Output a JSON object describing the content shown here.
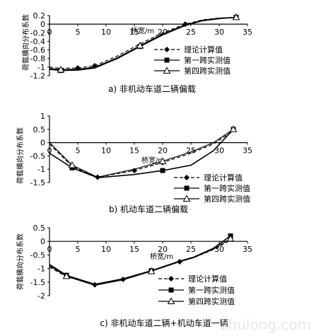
{
  "charts": [
    {
      "caption": "a) 非机动车道二辆偏载",
      "chart_data": {
        "type": "line",
        "title": "",
        "xlabel": "桥宽/m",
        "ylabel": "荷载横向分布系数",
        "xlim": [
          0,
          35
        ],
        "ylim": [
          -1.2,
          0.2
        ],
        "xticks": [
          0,
          5,
          10,
          15,
          20,
          25,
          30,
          35
        ],
        "yticks": [
          0.2,
          0,
          -0.2,
          -0.4,
          -0.6,
          -0.8,
          -1,
          -1.2
        ],
        "grid": false,
        "legend_position": "bottom-right",
        "series": [
          {
            "name": "理论计算值",
            "marker": "diamond",
            "dash": "5,3",
            "color": "#000000",
            "x": [
              0,
              2,
              5,
              8,
              12,
              16,
              20,
              24,
              27,
              30,
              33
            ],
            "y": [
              -1.0,
              -1.03,
              -1.02,
              -0.97,
              -0.74,
              -0.46,
              -0.2,
              0.0,
              0.1,
              0.14,
              0.15
            ]
          },
          {
            "name": "第一跨实测值",
            "marker": "square",
            "dash": "",
            "color": "#000000",
            "x": [
              0,
              2,
              5,
              8,
              12,
              16,
              20,
              24,
              27,
              30,
              33
            ],
            "y": [
              -1.05,
              -1.08,
              -1.07,
              -1.02,
              -0.8,
              -0.52,
              -0.25,
              -0.03,
              0.08,
              0.13,
              0.16
            ]
          },
          {
            "name": "第四跨实测值",
            "marker": "triangle",
            "dash": "",
            "color": "#000000",
            "x": [
              0,
              2,
              5,
              8,
              12,
              16,
              20,
              24,
              27,
              30,
              33
            ],
            "y": [
              -1.03,
              -1.06,
              -1.05,
              -1.0,
              -0.78,
              -0.5,
              -0.23,
              -0.02,
              0.09,
              0.14,
              0.16
            ]
          }
        ]
      }
    },
    {
      "caption": "b) 机动车道二辆偏载",
      "chart_data": {
        "type": "line",
        "title": "",
        "xlabel": "桥宽/m",
        "ylabel": "荷载横向分布系数",
        "xlim": [
          0,
          35
        ],
        "ylim": [
          -1.5,
          1
        ],
        "xticks": [
          0,
          5,
          10,
          15,
          20,
          25,
          30,
          35
        ],
        "yticks": [
          1,
          0.5,
          0,
          -0.5,
          -1,
          -1.5
        ],
        "grid": false,
        "legend_position": "bottom-right",
        "series": [
          {
            "name": "理论计算值",
            "marker": "diamond",
            "dash": "5,3",
            "color": "#000000",
            "x": [
              0,
              4,
              8.5,
              15,
              20,
              25,
              29,
              32.5
            ],
            "y": [
              -0.05,
              -0.9,
              -1.3,
              -1.05,
              -0.75,
              -0.4,
              -0.05,
              0.45
            ]
          },
          {
            "name": "第一跨实测值",
            "marker": "square",
            "dash": "",
            "color": "#000000",
            "x": [
              0,
              4,
              8.5,
              15,
              20,
              25,
              29,
              32.5
            ],
            "y": [
              -0.4,
              -0.95,
              -1.32,
              -1.2,
              -1.05,
              -0.85,
              -0.3,
              0.5
            ]
          },
          {
            "name": "第四跨实测值",
            "marker": "triangle",
            "dash": "",
            "color": "#000000",
            "x": [
              0,
              4,
              8.5,
              15,
              20,
              25,
              29,
              32.5
            ],
            "y": [
              0.0,
              -0.85,
              -1.3,
              -1.0,
              -0.7,
              -0.35,
              0.0,
              0.5
            ]
          }
        ]
      }
    },
    {
      "caption": "c) 非机动车道二辆+机动车道一辆",
      "chart_data": {
        "type": "line",
        "title": "",
        "xlabel": "桥宽/m",
        "ylabel": "荷载横向分布系数",
        "xlim": [
          0,
          35
        ],
        "ylim": [
          -2,
          0.5
        ],
        "xticks": [
          0,
          5,
          10,
          15,
          20,
          25,
          30,
          35
        ],
        "yticks": [
          0.5,
          0,
          -0.5,
          -1,
          -1.5,
          -2
        ],
        "grid": false,
        "legend_position": "bottom-right",
        "series": [
          {
            "name": "理论计算值",
            "marker": "diamond",
            "dash": "5,3",
            "color": "#000000",
            "x": [
              0,
              3,
              8,
              13,
              18,
              23,
              25.5,
              29,
              32
            ],
            "y": [
              -0.95,
              -1.3,
              -1.6,
              -1.4,
              -1.1,
              -0.75,
              -0.6,
              -0.3,
              0.05
            ]
          },
          {
            "name": "第一跨实测值",
            "marker": "square",
            "dash": "",
            "color": "#000000",
            "x": [
              0,
              3,
              8,
              13,
              18,
              23,
              25.5,
              29,
              32
            ],
            "y": [
              -0.85,
              -1.25,
              -1.58,
              -1.38,
              -1.08,
              -0.73,
              -0.58,
              -0.25,
              0.2
            ]
          },
          {
            "name": "第四跨实测值",
            "marker": "triangle",
            "dash": "",
            "color": "#000000",
            "x": [
              0,
              3,
              8,
              13,
              18,
              23,
              25.5,
              29,
              32
            ],
            "y": [
              -0.9,
              -1.28,
              -1.62,
              -1.42,
              -1.1,
              -0.75,
              -0.6,
              -0.28,
              0.1
            ]
          }
        ]
      }
    }
  ],
  "watermark": "zhulong.com"
}
